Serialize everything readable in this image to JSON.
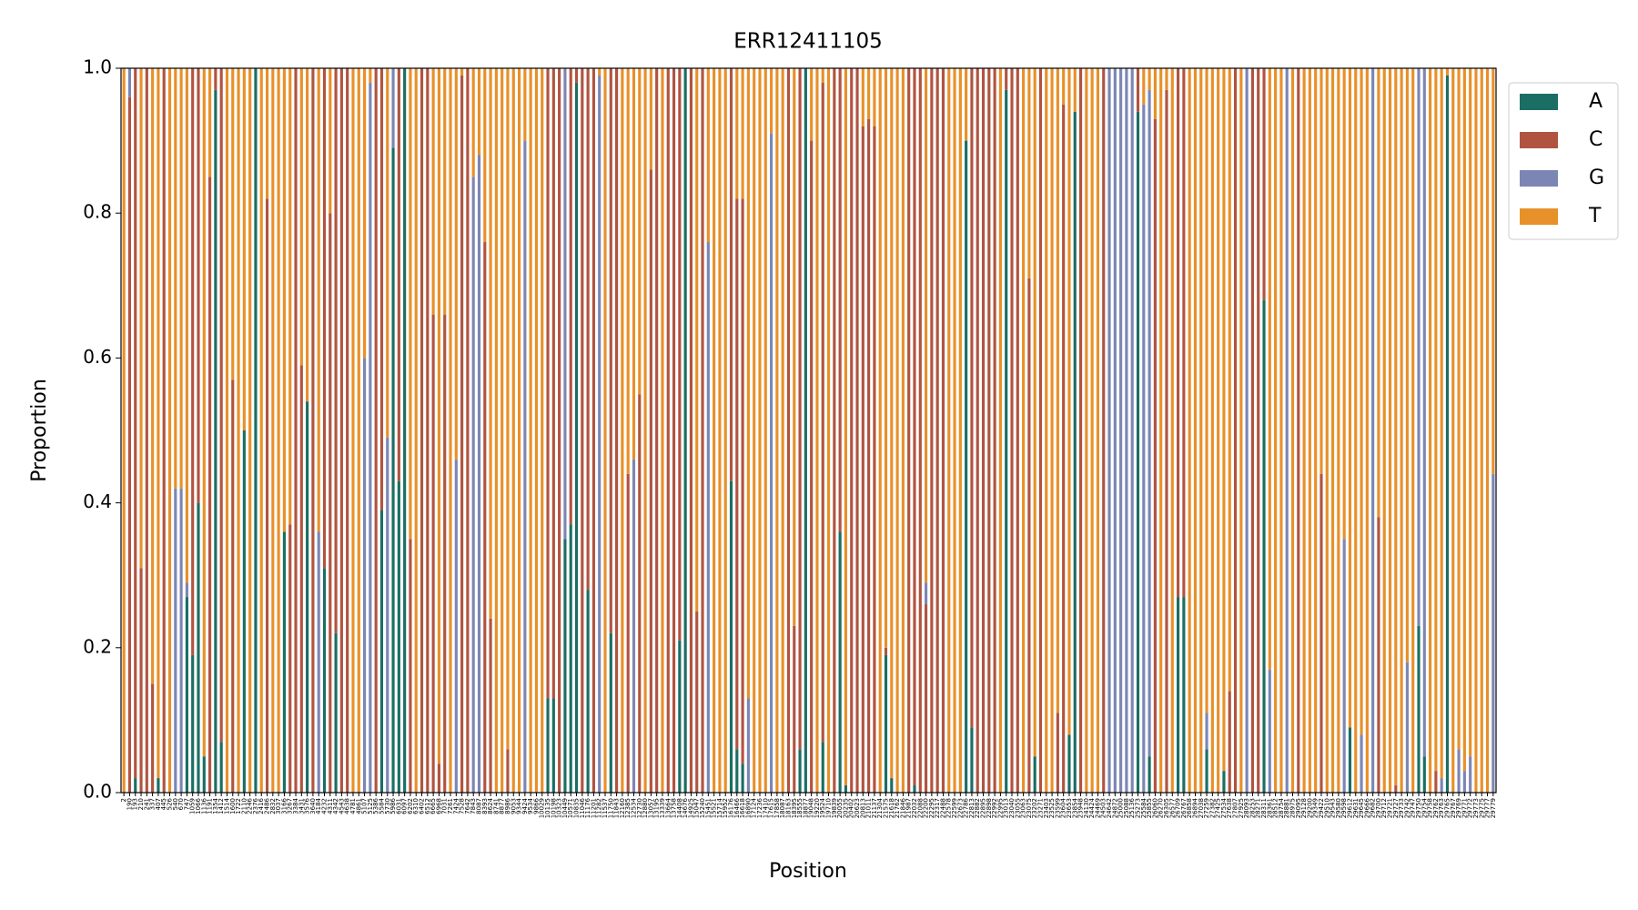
{
  "chart_data": {
    "type": "stacked_bar",
    "title": "ERR12411105",
    "x_label": "Position",
    "y_label": "Proportion",
    "categories": [
      "2",
      "190",
      "193",
      "210",
      "241",
      "337",
      "407",
      "445",
      "526",
      "540",
      "670",
      "747",
      "1059",
      "1066",
      "1136",
      "1191",
      "1354",
      "1412",
      "1514",
      "1600",
      "1722",
      "2110",
      "2246",
      "2376",
      "2416",
      "2486",
      "2832",
      "3037",
      "3166",
      "3267",
      "3384",
      "3431",
      "3576",
      "3640",
      "4184",
      "4232",
      "4311",
      "4342",
      "4543",
      "4638",
      "4781",
      "4861",
      "5107",
      "5125",
      "5386",
      "5584",
      "5730",
      "5986",
      "6031",
      "6097",
      "6202",
      "6310",
      "6402",
      "6512",
      "6665",
      "6968",
      "7031",
      "7261",
      "7424",
      "7528",
      "7642",
      "7843",
      "8087",
      "8393",
      "8624",
      "8741",
      "8877",
      "8986",
      "9053",
      "9344",
      "9424",
      "9534",
      "9866",
      "10029",
      "10135",
      "10198",
      "10323",
      "10449",
      "10571",
      "10835",
      "11046",
      "11176",
      "11201",
      "11282",
      "11537",
      "11750",
      "11843",
      "12160",
      "12385",
      "12534",
      "12730",
      "12880",
      "13057",
      "13195",
      "13339",
      "13664",
      "13758",
      "14408",
      "14676",
      "14925",
      "15047",
      "15240",
      "15451",
      "15521",
      "15714",
      "15952",
      "16176",
      "16466",
      "16618",
      "16890",
      "17124",
      "17236",
      "17410",
      "17615",
      "17858",
      "18087",
      "18163",
      "18395",
      "18555",
      "18877",
      "19048",
      "19220",
      "19524",
      "19710",
      "19839",
      "20055",
      "20235",
      "20402",
      "20623",
      "20813",
      "21011",
      "21137",
      "21304",
      "21575",
      "21618",
      "21762",
      "21846",
      "21987",
      "22032",
      "22088",
      "22200",
      "22295",
      "22317",
      "22488",
      "22578",
      "22599",
      "22673",
      "22786",
      "22813",
      "22882",
      "22895",
      "22898",
      "22992",
      "22995",
      "23013",
      "23040",
      "23055",
      "23063",
      "23075",
      "23202",
      "23271",
      "23403",
      "23525",
      "23599",
      "23604",
      "23653",
      "23854",
      "23948",
      "24130",
      "24424",
      "24469",
      "24503",
      "24642",
      "24872",
      "25000",
      "25088",
      "25136",
      "25273",
      "25584",
      "25855",
      "26060",
      "26270",
      "26305",
      "26577",
      "26709",
      "26767",
      "26858",
      "26894",
      "27038",
      "27259",
      "27382",
      "27425",
      "27534",
      "27638",
      "27807",
      "27925",
      "28093",
      "28253",
      "28271",
      "28311",
      "28361",
      "28512",
      "28754",
      "28881",
      "28975",
      "29095",
      "29128",
      "29200",
      "29349",
      "29422",
      "29510",
      "29543",
      "29580",
      "29598",
      "29612",
      "29631",
      "29645",
      "29666",
      "29682",
      "29700",
      "29712",
      "29721",
      "29727",
      "29733",
      "29742",
      "29747",
      "29750",
      "29754",
      "29758",
      "29762",
      "29763",
      "29765",
      "29767",
      "29769",
      "29771",
      "29772",
      "29773",
      "29775",
      "29777",
      "29779"
    ],
    "series": [
      {
        "name": "A",
        "color": "#1b6e63",
        "values": [
          0,
          0,
          0.02,
          0,
          0,
          0,
          0.02,
          0,
          0,
          0,
          0,
          0.27,
          0.19,
          0.4,
          0.05,
          0,
          0.97,
          0.07,
          0,
          0,
          0,
          0.5,
          0,
          1,
          0,
          0,
          0,
          0,
          0.36,
          0,
          0,
          0,
          0.54,
          0,
          0,
          0.31,
          0,
          0.22,
          0,
          0,
          0,
          0,
          0,
          0,
          0,
          0.39,
          0,
          0.89,
          0.43,
          1,
          0,
          0,
          0,
          0,
          0,
          0,
          0,
          0,
          0,
          0,
          0,
          0,
          0,
          0,
          0,
          0,
          0,
          0,
          0,
          0,
          0,
          0,
          0,
          0,
          0.13,
          0.13,
          0,
          0.35,
          0.37,
          0.98,
          0,
          0.28,
          0,
          0,
          0,
          0.22,
          0,
          0,
          0,
          0,
          0,
          0,
          0,
          0,
          0,
          0,
          0,
          0.21,
          1,
          0,
          0,
          0,
          0,
          0,
          0,
          0,
          0.43,
          0.06,
          0.04,
          0,
          0,
          0,
          0,
          0,
          0,
          0,
          0,
          0,
          0.06,
          1,
          0,
          0,
          0.07,
          0,
          0,
          0.36,
          0.01,
          0,
          0,
          0,
          0,
          0,
          0,
          0.19,
          0.02,
          0,
          0,
          0,
          0.01,
          0,
          0,
          0,
          0,
          0,
          0,
          0,
          0,
          0.9,
          0.09,
          0,
          0,
          0,
          0,
          0,
          0.97,
          0,
          0,
          0,
          0,
          0.05,
          0,
          0,
          0,
          0,
          0,
          0.08,
          0.94,
          0,
          0,
          0,
          0,
          0,
          0,
          0,
          0,
          0,
          0,
          0.94,
          0,
          0.05,
          0,
          0,
          0,
          0,
          0.27,
          0.27,
          0,
          0,
          0,
          0.06,
          0,
          0,
          0.03,
          0,
          0,
          0,
          0,
          0,
          0,
          0.68,
          0,
          0,
          0,
          0,
          0,
          0,
          0,
          0,
          0,
          0,
          0,
          0,
          0,
          0,
          0.09,
          0,
          0,
          0,
          0,
          0,
          0,
          0,
          0,
          0,
          0,
          0,
          0.23,
          0.05,
          0,
          0,
          0,
          0.99,
          0,
          0,
          0,
          0,
          0,
          0,
          0,
          0
        ]
      },
      {
        "name": "C",
        "color": "#b05440",
        "values": [
          0,
          0.96,
          0.98,
          0.31,
          1,
          0.15,
          0,
          1,
          0,
          0,
          0,
          0,
          0.81,
          0.6,
          0,
          0.85,
          0.03,
          0.93,
          0,
          0.57,
          0,
          0,
          0,
          0,
          0,
          0.82,
          0,
          0,
          0,
          0.37,
          1,
          0.59,
          0,
          1,
          0,
          0.69,
          0.8,
          0.78,
          1,
          1,
          0,
          0,
          0,
          0,
          1,
          0.61,
          0,
          0,
          0.57,
          0,
          0.35,
          0,
          1,
          1,
          0.66,
          0.04,
          0.66,
          0,
          0,
          0.99,
          1,
          0,
          0,
          0.76,
          0.24,
          0,
          0,
          0.06,
          0,
          0,
          0,
          0,
          0,
          0,
          0.87,
          0.87,
          1,
          0,
          0.63,
          0.02,
          1,
          0.72,
          1,
          0,
          0,
          0.78,
          1,
          0,
          0.44,
          0,
          0.55,
          0,
          0.86,
          1,
          0,
          1,
          1,
          0.79,
          0,
          1,
          0.25,
          1,
          0,
          0,
          0,
          0,
          0.57,
          0.76,
          0.78,
          0,
          0,
          0,
          0,
          0,
          0,
          0,
          1,
          0.23,
          0.94,
          0,
          0.9,
          0,
          0.91,
          0,
          1,
          0.64,
          0,
          1,
          1,
          0.92,
          0.93,
          0.92,
          0,
          0.01,
          0,
          0,
          0,
          1,
          0.99,
          1,
          0.26,
          1,
          1,
          1,
          0,
          0,
          0,
          0,
          0.91,
          1,
          1,
          1,
          1,
          0,
          0.03,
          1,
          1,
          0,
          0.71,
          0,
          1,
          0,
          0,
          0.11,
          0.95,
          0,
          0,
          1,
          0,
          0,
          0,
          1,
          0,
          0,
          0,
          0,
          0,
          0.06,
          0,
          0,
          0.93,
          0,
          0.97,
          0,
          0.73,
          0.73,
          0,
          0,
          0,
          0,
          0,
          0,
          0,
          0.14,
          1,
          0,
          0,
          1,
          1,
          0.32,
          0,
          0,
          0,
          0,
          0,
          1,
          0,
          0,
          0,
          0.44,
          0,
          0,
          0,
          0,
          0,
          0,
          0,
          0,
          0,
          0.38,
          0,
          0,
          0.01,
          0,
          0,
          0,
          0,
          0,
          0,
          0.03,
          0,
          0,
          0,
          0,
          0,
          0,
          0,
          0,
          0,
          0
        ]
      },
      {
        "name": "G",
        "color": "#7c86b4",
        "values": [
          0,
          0.04,
          0,
          0,
          0,
          0,
          0,
          0,
          0,
          0.42,
          0.42,
          0.02,
          0,
          0,
          0,
          0,
          0,
          0,
          0,
          0,
          0,
          0,
          0,
          0,
          0,
          0,
          0,
          0,
          0,
          0,
          0,
          0,
          0,
          0,
          0.36,
          0,
          0,
          0,
          0,
          0,
          0,
          0,
          0.6,
          0.98,
          0,
          0,
          0.49,
          0.11,
          0,
          0,
          0,
          0,
          0,
          0,
          0,
          0,
          0,
          0,
          0.46,
          0,
          0,
          0.85,
          0.88,
          0,
          0,
          0,
          0,
          0,
          0,
          0,
          0.9,
          0,
          0,
          0,
          0,
          0,
          0,
          0.65,
          0,
          0,
          0,
          0,
          0,
          0.99,
          0,
          0,
          0,
          0,
          0,
          0.46,
          0,
          0,
          0,
          0,
          0,
          0,
          0,
          0,
          0,
          0,
          0,
          0,
          0.76,
          0,
          0,
          0,
          0,
          0,
          0,
          0.13,
          0,
          0,
          0,
          0.91,
          0,
          0,
          0,
          0,
          0,
          0,
          0,
          0,
          0,
          0,
          0,
          0,
          0,
          0,
          0,
          0,
          0,
          0,
          0,
          0,
          0,
          0,
          0,
          0,
          0,
          0,
          0.03,
          0,
          0,
          0,
          0,
          0,
          0,
          0,
          0,
          0,
          0,
          0,
          0,
          0,
          0,
          0,
          0,
          0,
          0,
          0,
          0,
          0,
          0,
          0,
          0,
          0,
          0,
          0,
          0,
          0,
          0,
          0,
          1,
          1,
          1,
          1,
          1,
          0,
          0.95,
          0.92,
          0,
          0,
          0,
          0,
          0,
          0,
          0,
          0,
          0,
          0.05,
          0,
          0,
          0,
          0,
          0,
          0,
          1,
          0,
          0,
          0,
          0.17,
          0,
          0,
          1,
          0,
          0,
          0,
          0,
          0,
          0,
          0,
          0,
          0,
          0.35,
          0,
          0,
          0.08,
          0,
          1,
          0,
          0,
          0,
          0,
          0,
          0.18,
          0,
          0.77,
          0.95,
          0,
          0,
          0.02,
          0,
          0,
          0.06,
          0.03,
          0.05,
          0,
          0,
          0,
          0.44
        ]
      },
      {
        "name": "T",
        "color": "#e8902a",
        "values": [
          1,
          0,
          0,
          0.69,
          0,
          0.85,
          0.98,
          0,
          1,
          0.58,
          0.58,
          0.71,
          0,
          0,
          0.95,
          0.15,
          0,
          0,
          1,
          0.43,
          1,
          0.5,
          1,
          0,
          1,
          0.18,
          1,
          1,
          0.64,
          0.63,
          0,
          0.41,
          0.46,
          0,
          0.64,
          0,
          0.2,
          0,
          0,
          0,
          1,
          1,
          0.4,
          0.02,
          0,
          0,
          0.51,
          0,
          0,
          0,
          0.65,
          1,
          0,
          0,
          0.34,
          0.96,
          0.34,
          1,
          0.54,
          0.01,
          0,
          0.15,
          0.12,
          0.24,
          0.76,
          1,
          1,
          0.94,
          1,
          1,
          0.1,
          1,
          1,
          1,
          0,
          0,
          0,
          0,
          0,
          0,
          0,
          0,
          0,
          0.01,
          1,
          0,
          0,
          1,
          0.56,
          0.54,
          0.45,
          1,
          0.14,
          0,
          1,
          0,
          0,
          0,
          0,
          0,
          0.75,
          0,
          0.24,
          1,
          1,
          1,
          0,
          0.18,
          0.18,
          0.87,
          1,
          1,
          1,
          0.09,
          1,
          1,
          0,
          0.77,
          0,
          0,
          0.1,
          1,
          0.02,
          1,
          0,
          0,
          0.99,
          0,
          0,
          0.08,
          0.07,
          0.08,
          1,
          0.8,
          0.98,
          1,
          1,
          0,
          0,
          0,
          0.71,
          0,
          0,
          0,
          1,
          1,
          1,
          0.1,
          0,
          0,
          0,
          0,
          0,
          1,
          0,
          0,
          0,
          1,
          0.29,
          0.95,
          0,
          1,
          1,
          0.89,
          0.05,
          0.92,
          0.06,
          0,
          1,
          1,
          1,
          0,
          0,
          0,
          0,
          0,
          0,
          0,
          0.05,
          0.03,
          0.07,
          1,
          0.03,
          1,
          0,
          0,
          1,
          1,
          1,
          0.89,
          1,
          1,
          0.97,
          0.86,
          0,
          1,
          0,
          0,
          0,
          0,
          0.83,
          1,
          1,
          0,
          1,
          0,
          1,
          1,
          1,
          0.56,
          1,
          1,
          1,
          0.65,
          0.91,
          1,
          0.92,
          1,
          0,
          0.62,
          1,
          1,
          0.99,
          1,
          0.82,
          1,
          0,
          0,
          1,
          0.97,
          0.98,
          0.01,
          1,
          0.94,
          0.97,
          0.95,
          1,
          1,
          1,
          0.56
        ]
      }
    ],
    "ylim": [
      0,
      1
    ],
    "yticks": [
      {
        "value": 0,
        "label": "0.0"
      },
      0.2,
      0.4,
      0.6,
      0.8,
      {
        "value": 1,
        "label": "1.0"
      }
    ],
    "legend": "upper right outside"
  }
}
